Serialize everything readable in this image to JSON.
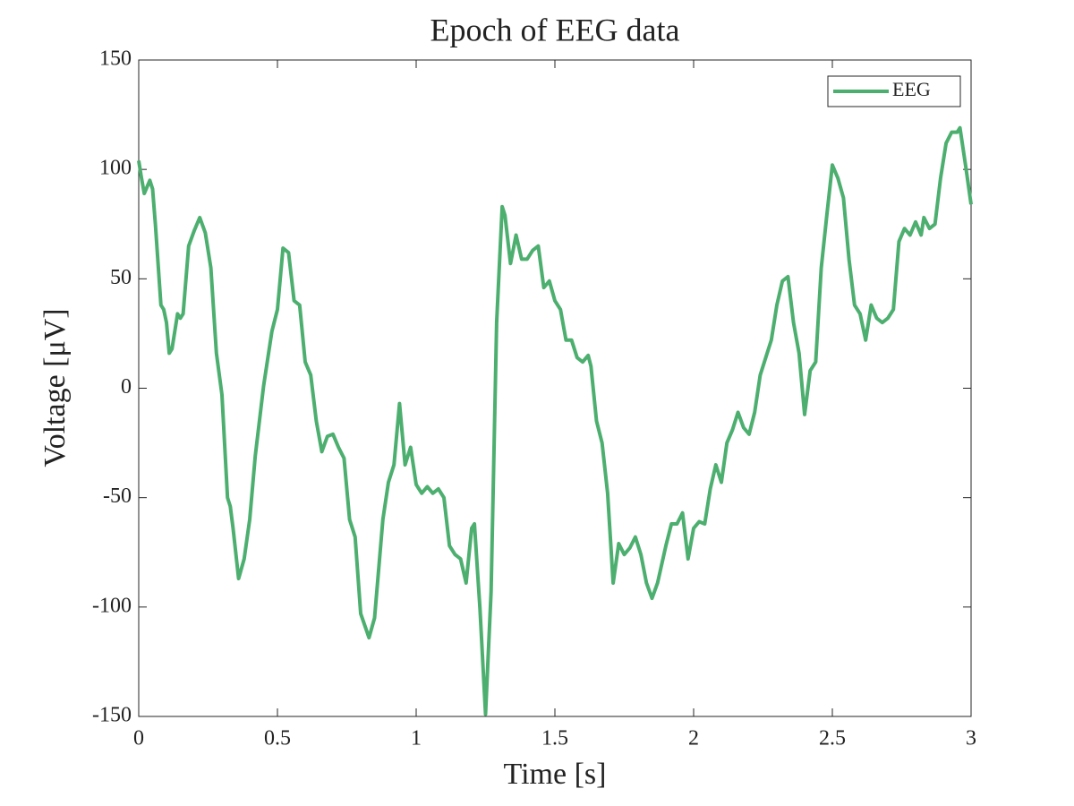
{
  "chart_data": {
    "type": "line",
    "title": "Epoch of EEG data",
    "x_label": "Time [s]",
    "y_label": "Voltage [μV]",
    "xlim": [
      0,
      3
    ],
    "ylim": [
      -150,
      150
    ],
    "xticks": [
      0,
      0.5,
      1,
      1.5,
      2,
      2.5,
      3
    ],
    "yticks": [
      -150,
      -100,
      -50,
      0,
      50,
      100,
      150
    ],
    "grid": false,
    "legend": "northeast",
    "x": [
      0,
      0.01,
      0.02,
      0.04,
      0.05,
      0.06,
      0.08,
      0.09,
      0.1,
      0.11,
      0.12,
      0.14,
      0.15,
      0.16,
      0.18,
      0.2,
      0.22,
      0.24,
      0.26,
      0.28,
      0.3,
      0.32,
      0.33,
      0.34,
      0.36,
      0.38,
      0.4,
      0.42,
      0.45,
      0.48,
      0.5,
      0.52,
      0.54,
      0.56,
      0.58,
      0.6,
      0.62,
      0.64,
      0.66,
      0.68,
      0.7,
      0.72,
      0.74,
      0.76,
      0.78,
      0.8,
      0.83,
      0.85,
      0.88,
      0.9,
      0.92,
      0.94,
      0.96,
      0.98,
      1.0,
      1.02,
      1.04,
      1.06,
      1.08,
      1.1,
      1.12,
      1.14,
      1.16,
      1.18,
      1.2,
      1.21,
      1.23,
      1.25,
      1.27,
      1.29,
      1.31,
      1.32,
      1.34,
      1.36,
      1.38,
      1.4,
      1.42,
      1.44,
      1.46,
      1.48,
      1.5,
      1.52,
      1.54,
      1.56,
      1.58,
      1.6,
      1.62,
      1.63,
      1.65,
      1.67,
      1.69,
      1.71,
      1.73,
      1.75,
      1.77,
      1.79,
      1.81,
      1.83,
      1.85,
      1.87,
      1.9,
      1.92,
      1.94,
      1.96,
      1.98,
      2.0,
      2.02,
      2.04,
      2.06,
      2.08,
      2.1,
      2.12,
      2.14,
      2.16,
      2.18,
      2.2,
      2.22,
      2.24,
      2.26,
      2.28,
      2.3,
      2.32,
      2.34,
      2.36,
      2.38,
      2.4,
      2.42,
      2.44,
      2.46,
      2.48,
      2.5,
      2.52,
      2.54,
      2.56,
      2.58,
      2.6,
      2.62,
      2.64,
      2.66,
      2.68,
      2.7,
      2.72,
      2.74,
      2.76,
      2.78,
      2.8,
      2.82,
      2.83,
      2.85,
      2.87,
      2.89,
      2.91,
      2.93,
      2.95,
      2.96,
      2.98,
      3.0
    ],
    "series": [
      {
        "name": "EEG",
        "color": "#4daf6f",
        "values": [
          104,
          96,
          89,
          95,
          91,
          75,
          38,
          36,
          30,
          16,
          18,
          34,
          32,
          34,
          65,
          72,
          78,
          71,
          55,
          16,
          -3,
          -50,
          -54,
          -64,
          -87,
          -78,
          -60,
          -31,
          1,
          26,
          36,
          64,
          62,
          40,
          38,
          12,
          6,
          -15,
          -29,
          -22,
          -21,
          -27,
          -32,
          -60,
          -68,
          -103,
          -114,
          -105,
          -60,
          -43,
          -35,
          -7,
          -35,
          -27,
          -44,
          -48,
          -45,
          -48,
          -46,
          -50,
          -72,
          -76,
          -78,
          -89,
          -64,
          -62,
          -101,
          -149,
          -93,
          30,
          83,
          79,
          57,
          70,
          59,
          59,
          63,
          65,
          46,
          49,
          40,
          36,
          22,
          22,
          14,
          12,
          15,
          10,
          -15,
          -25,
          -48,
          -89,
          -71,
          -76,
          -73,
          -68,
          -76,
          -89,
          -96,
          -89,
          -72,
          -62,
          -62,
          -57,
          -78,
          -64,
          -61,
          -62,
          -46,
          -35,
          -43,
          -25,
          -19,
          -11,
          -18,
          -21,
          -11,
          6,
          14,
          22,
          38,
          49,
          51,
          30,
          16,
          -12,
          8,
          12,
          55,
          79,
          102,
          96,
          87,
          59,
          38,
          34,
          22,
          38,
          32,
          30,
          32,
          36,
          67,
          73,
          70,
          76,
          70,
          78,
          73,
          75,
          96,
          112,
          117,
          117,
          119,
          102,
          84
        ]
      }
    ]
  }
}
